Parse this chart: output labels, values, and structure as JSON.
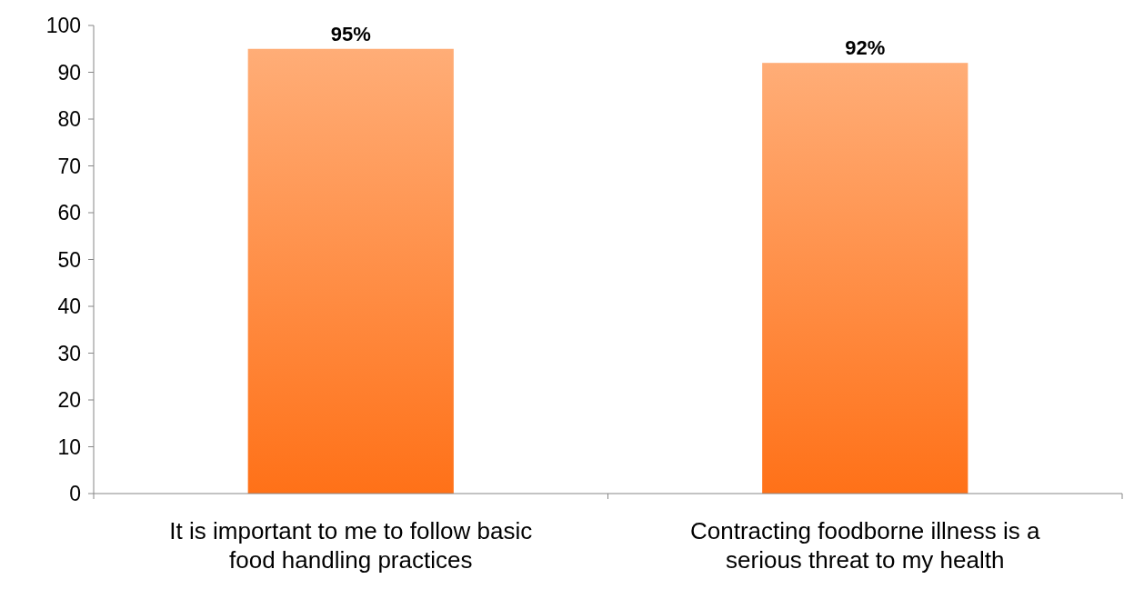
{
  "chart_data": {
    "type": "bar",
    "categories": [
      "It is important to me to follow basic food handling practices",
      "Contracting foodborne illness is a serious threat to my health"
    ],
    "values": [
      95,
      92
    ],
    "value_labels": [
      "95%",
      "92%"
    ],
    "color": "#ff8a3d",
    "ylim": [
      0,
      100
    ],
    "yticks": [
      0,
      10,
      20,
      30,
      40,
      50,
      60,
      70,
      80,
      90,
      100
    ],
    "grid": false
  }
}
